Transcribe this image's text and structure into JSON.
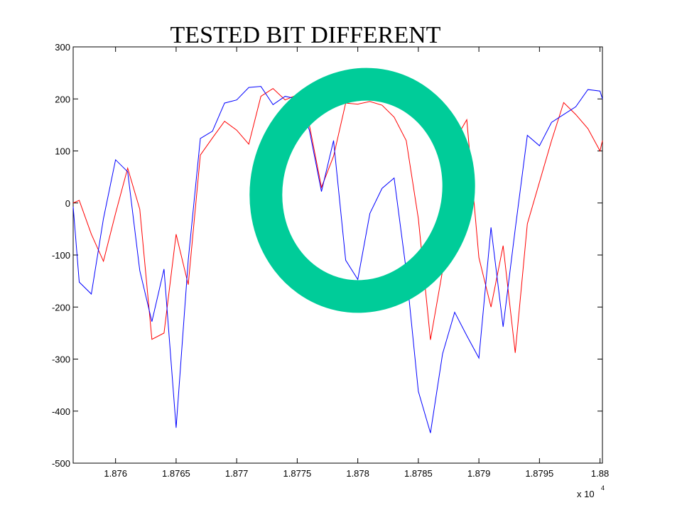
{
  "chart_data": {
    "type": "line",
    "title": "TESTED BIT DIFFERENT",
    "x_scale_label": "x 10",
    "x_scale_exponent": "4",
    "x": [
      1.87565,
      1.8757,
      1.8758,
      1.8759,
      1.876,
      1.8761,
      1.8762,
      1.8763,
      1.8764,
      1.8765,
      1.8766,
      1.8767,
      1.8768,
      1.8769,
      1.877,
      1.8771,
      1.8772,
      1.8773,
      1.8774,
      1.8775,
      1.8776,
      1.8777,
      1.8778,
      1.8779,
      1.878,
      1.8781,
      1.8782,
      1.8783,
      1.8784,
      1.8785,
      1.8786,
      1.8787,
      1.8788,
      1.8789,
      1.879,
      1.8791,
      1.8792,
      1.8793,
      1.8794,
      1.8795,
      1.8796,
      1.8797,
      1.8798,
      1.8799,
      1.88,
      1.88002
    ],
    "series": [
      {
        "color": "#ff0000",
        "values": [
          0,
          5,
          -60,
          -112,
          -20,
          67,
          -12,
          -262,
          -250,
          -60,
          -157,
          92,
          125,
          157,
          140,
          113,
          205,
          220,
          198,
          208,
          150,
          30,
          90,
          192,
          190,
          195,
          188,
          165,
          120,
          -30,
          -263,
          -130,
          120,
          160,
          -105,
          -200,
          -82,
          -288,
          -40,
          40,
          120,
          193,
          170,
          143,
          100,
          120
        ]
      },
      {
        "color": "#0000ff",
        "values": [
          -7,
          -152,
          -175,
          -30,
          83,
          60,
          -130,
          -228,
          -127,
          -432,
          -110,
          124,
          138,
          192,
          198,
          222,
          224,
          189,
          205,
          200,
          140,
          22,
          120,
          -110,
          -147,
          -20,
          28,
          48,
          -130,
          -362,
          -442,
          -290,
          -210,
          -255,
          -298,
          -47,
          -238,
          -50,
          130,
          110,
          155,
          170,
          185,
          218,
          215,
          200
        ]
      }
    ],
    "xlim": [
      1.87565,
      1.88002
    ],
    "xticks": [
      1.876,
      1.8765,
      1.877,
      1.8775,
      1.878,
      1.8785,
      1.879,
      1.8795,
      1.88
    ],
    "ylim": [
      -500,
      300
    ],
    "yticks": [
      -500,
      -400,
      -300,
      -200,
      -100,
      0,
      100,
      200,
      300
    ],
    "grid": false
  }
}
